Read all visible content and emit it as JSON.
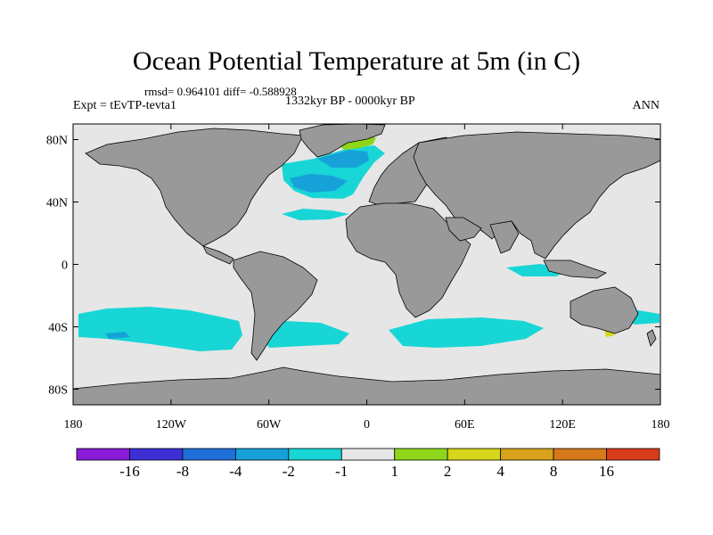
{
  "title": "Ocean Potential Temperature at 5m (in C)",
  "stats": "rmsd= 0.964101 diff= -0.588928",
  "experiment": "Expt = tEvTP-tevta1",
  "period": "1332kyr BP - 0000kyr BP",
  "season": "ANN",
  "map": {
    "ocean_color": "#e6e6e6",
    "land_color": "#999999",
    "x_ticks": [
      {
        "lon": -180,
        "label": "180"
      },
      {
        "lon": -120,
        "label": "120W"
      },
      {
        "lon": -60,
        "label": "60W"
      },
      {
        "lon": 0,
        "label": "0"
      },
      {
        "lon": 60,
        "label": "60E"
      },
      {
        "lon": 120,
        "label": "120E"
      },
      {
        "lon": 180,
        "label": "180"
      }
    ],
    "y_ticks": [
      {
        "lat": 80,
        "label": "80N"
      },
      {
        "lat": 40,
        "label": "40N"
      },
      {
        "lat": 0,
        "label": "0"
      },
      {
        "lat": -40,
        "label": "40S"
      },
      {
        "lat": -80,
        "label": "80S"
      }
    ]
  },
  "colorbar": {
    "colors": [
      "#8a1bd6",
      "#3d2fd6",
      "#1f6fd8",
      "#16a2d8",
      "#18d6d6",
      "#e6e6e6",
      "#8ed61a",
      "#d6d61a",
      "#d6a31a",
      "#d6791a",
      "#d63c1a"
    ],
    "labels": [
      "-16",
      "-8",
      "-4",
      "-2",
      "-1",
      "1",
      "2",
      "4",
      "8",
      "16"
    ]
  }
}
